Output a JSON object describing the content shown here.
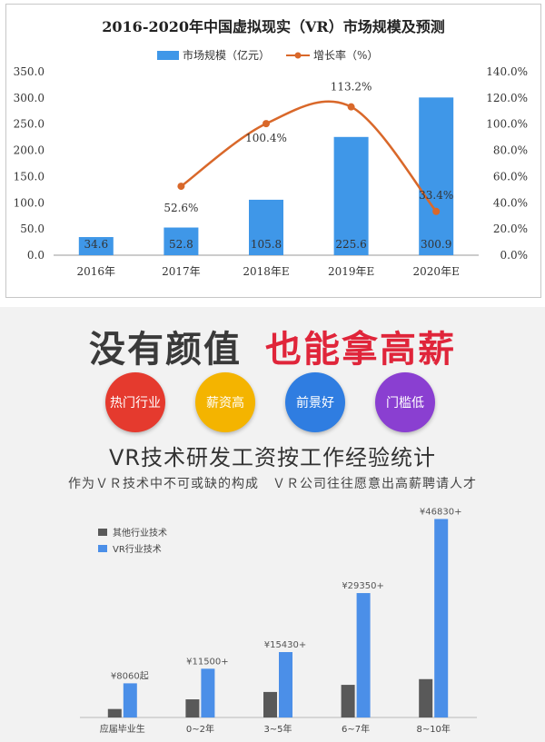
{
  "colors": {
    "bar_blue": "#3f97e8",
    "line_orange": "#d9682a",
    "grey_bar": "#595959",
    "vr_blue": "#4b8fe8",
    "red": "#e0253a"
  },
  "chart_data": [
    {
      "type": "bar",
      "title": "2016-2020年中国虚拟现实（VR）市场规模及预测",
      "categories": [
        "2016年",
        "2017年",
        "2018年E",
        "2019年E",
        "2020年E"
      ],
      "series": [
        {
          "name": "市场规模（亿元）",
          "type": "bar",
          "axis": "left",
          "values": [
            34.6,
            52.8,
            105.8,
            225.6,
            300.9
          ],
          "labels": [
            "34.6",
            "52.8",
            "105.8",
            "225.6",
            "300.9"
          ]
        },
        {
          "name": "增长率（%）",
          "type": "line",
          "axis": "right",
          "values": [
            null,
            52.6,
            100.4,
            113.2,
            33.4
          ],
          "labels": [
            "",
            "52.6%",
            "100.4%",
            "113.2%",
            "33.4%"
          ]
        }
      ],
      "ylim_left": [
        0,
        350
      ],
      "yticks_left": [
        "0.0",
        "50.0",
        "100.0",
        "150.0",
        "200.0",
        "250.0",
        "300.0",
        "350.0"
      ],
      "ylim_right": [
        0,
        140
      ],
      "yticks_right": [
        "0.0%",
        "20.0%",
        "40.0%",
        "60.0%",
        "80.0%",
        "100.0%",
        "120.0%",
        "140.0%"
      ],
      "legend": "top-center"
    },
    {
      "type": "bar",
      "categories": [
        "应届毕业生",
        "0~2年",
        "3~5年",
        "6~7年",
        "8~10年"
      ],
      "series": [
        {
          "name": "其他行业技术",
          "values": [
            2000,
            4280,
            6020,
            7700,
            9050
          ]
        },
        {
          "name": "VR行业技术",
          "values": [
            8060,
            11500,
            15430,
            29350,
            46830
          ]
        }
      ],
      "value_labels": [
        "¥8060起",
        "¥11500+",
        "¥15430+",
        "¥29350+",
        "¥46830+"
      ],
      "legend": "top-left"
    }
  ],
  "poster": {
    "banner_left": "没有颜值",
    "banner_right": "也能拿高薪",
    "tags": [
      {
        "label": "热门行业",
        "color": "#e53a2e"
      },
      {
        "label": "薪资高",
        "color": "#f4b400"
      },
      {
        "label": "前景好",
        "color": "#2f7de1"
      },
      {
        "label": "门槛低",
        "color": "#8a3fd1"
      }
    ],
    "heading": "VR技术研发工资按工作经验统计",
    "subheading": "作为ＶＲ技术中不可或缺的构成　ＶＲ公司往往愿意出高薪聘请人才"
  }
}
